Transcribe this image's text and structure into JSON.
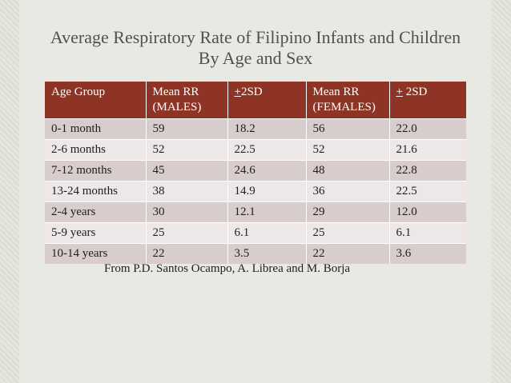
{
  "title": {
    "line1": "Average Respiratory Rate of Filipino Infants and Children",
    "line2": "By Age and Sex"
  },
  "table": {
    "headers": [
      {
        "line1": "Age Group",
        "line2": ""
      },
      {
        "line1": "Mean RR",
        "line2": "(MALES)"
      },
      {
        "pm": "+",
        "rest": "2SD",
        "sep": " "
      },
      {
        "line1": "Mean RR",
        "line2": "(FEMALES)"
      },
      {
        "pm": "+",
        "rest": " 2SD",
        "sep": " "
      }
    ],
    "rows": [
      [
        "0-1 month",
        "59",
        "18.2",
        "56",
        "22.0"
      ],
      [
        "2-6 months",
        "52",
        "22.5",
        "52",
        "21.6"
      ],
      [
        "7-12 months",
        "45",
        "24.6",
        "48",
        "22.8"
      ],
      [
        "13-24 months",
        "38",
        "14.9",
        "36",
        "22.5"
      ],
      [
        "2-4 years",
        "30",
        "12.1",
        "29",
        "12.0"
      ],
      [
        "5-9 years",
        "25",
        " 6.1",
        "25",
        " 6.1"
      ],
      [
        "10-14 years",
        "22",
        " 3.5",
        "22",
        " 3.6"
      ]
    ]
  },
  "source": "From P.D. Santos Ocampo, A. Librea and M. Borja"
}
